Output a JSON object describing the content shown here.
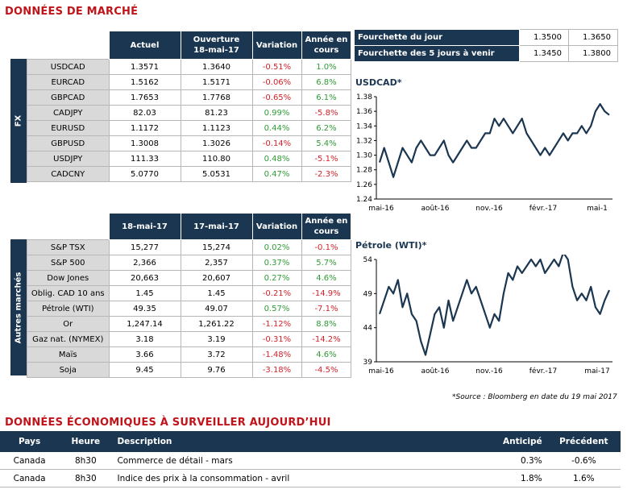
{
  "title_market": "DONNÉES DE MARCHÉ",
  "fx": {
    "side_label": "FX",
    "headers": [
      "Actuel",
      "Ouverture\n18-mai-17",
      "Variation",
      "Année en\ncours"
    ],
    "rows": [
      {
        "label": "USDCAD",
        "actuel": "1.3571",
        "ouverture": "1.3640",
        "variation": "-0.51%",
        "annee": "1.0%",
        "var_dir": "neg",
        "annee_dir": "pos"
      },
      {
        "label": "EURCAD",
        "actuel": "1.5162",
        "ouverture": "1.5171",
        "variation": "-0.06%",
        "annee": "6.8%",
        "var_dir": "neg",
        "annee_dir": "pos"
      },
      {
        "label": "GBPCAD",
        "actuel": "1.7653",
        "ouverture": "1.7768",
        "variation": "-0.65%",
        "annee": "6.1%",
        "var_dir": "neg",
        "annee_dir": "pos"
      },
      {
        "label": "CADJPY",
        "actuel": "82.03",
        "ouverture": "81.23",
        "variation": "0.99%",
        "annee": "-5.8%",
        "var_dir": "pos",
        "annee_dir": "neg"
      },
      {
        "label": "EURUSD",
        "actuel": "1.1172",
        "ouverture": "1.1123",
        "variation": "0.44%",
        "annee": "6.2%",
        "var_dir": "pos",
        "annee_dir": "pos"
      },
      {
        "label": "GBPUSD",
        "actuel": "1.3008",
        "ouverture": "1.3026",
        "variation": "-0.14%",
        "annee": "5.4%",
        "var_dir": "neg",
        "annee_dir": "pos"
      },
      {
        "label": "USDJPY",
        "actuel": "111.33",
        "ouverture": "110.80",
        "variation": "0.48%",
        "annee": "-5.1%",
        "var_dir": "pos",
        "annee_dir": "neg"
      },
      {
        "label": "CADCNY",
        "actuel": "5.0770",
        "ouverture": "5.0531",
        "variation": "0.47%",
        "annee": "-2.3%",
        "var_dir": "pos",
        "annee_dir": "neg"
      }
    ]
  },
  "other": {
    "side_label": "Autres marchés",
    "headers": [
      "18-mai-17",
      "17-mai-17",
      "Variation",
      "Année en\ncours"
    ],
    "rows": [
      {
        "label": "S&P TSX",
        "actuel": "15,277",
        "ouverture": "15,274",
        "variation": "0.02%",
        "annee": "-0.1%",
        "var_dir": "pos",
        "annee_dir": "neg"
      },
      {
        "label": "S&P 500",
        "actuel": "2,366",
        "ouverture": "2,357",
        "variation": "0.37%",
        "annee": "5.7%",
        "var_dir": "pos",
        "annee_dir": "pos"
      },
      {
        "label": "Dow Jones",
        "actuel": "20,663",
        "ouverture": "20,607",
        "variation": "0.27%",
        "annee": "4.6%",
        "var_dir": "pos",
        "annee_dir": "pos"
      },
      {
        "label": "Oblig. CAD 10 ans",
        "actuel": "1.45",
        "ouverture": "1.45",
        "variation": "-0.21%",
        "annee": "-14.9%",
        "var_dir": "neg",
        "annee_dir": "neg"
      },
      {
        "label": "Pétrole (WTI)",
        "actuel": "49.35",
        "ouverture": "49.07",
        "variation": "0.57%",
        "annee": "-7.1%",
        "var_dir": "pos",
        "annee_dir": "neg"
      },
      {
        "label": "Or",
        "actuel": "1,247.14",
        "ouverture": "1,261.22",
        "variation": "-1.12%",
        "annee": "8.8%",
        "var_dir": "neg",
        "annee_dir": "pos"
      },
      {
        "label": "Gaz nat. (NYMEX)",
        "actuel": "3.18",
        "ouverture": "3.19",
        "variation": "-0.31%",
        "annee": "-14.2%",
        "var_dir": "neg",
        "annee_dir": "neg"
      },
      {
        "label": "Maïs",
        "actuel": "3.66",
        "ouverture": "3.72",
        "variation": "-1.48%",
        "annee": "4.6%",
        "var_dir": "neg",
        "annee_dir": "pos"
      },
      {
        "label": "Soja",
        "actuel": "9.45",
        "ouverture": "9.76",
        "variation": "-3.18%",
        "annee": "-4.5%",
        "var_dir": "neg",
        "annee_dir": "neg"
      }
    ]
  },
  "ranges": [
    {
      "label": "Fourchette du jour",
      "low": "1.3500",
      "high": "1.3650"
    },
    {
      "label": "Fourchette des 5 jours à venir",
      "low": "1.3450",
      "high": "1.3800"
    }
  ],
  "source": "*Source : Bloomberg en date du  19 mai 2017",
  "title_econ": "DONNÉES ÉCONOMIQUES À SURVEILLER AUJOURD’HUI",
  "econ": {
    "headers": {
      "pays": "Pays",
      "heure": "Heure",
      "description": "Description",
      "anticipe": "Anticipé",
      "precedent": "Précédent"
    },
    "rows": [
      {
        "pays": "Canada",
        "heure": "8h30",
        "description": "Commerce de détail - mars",
        "anticipe": "0.3%",
        "precedent": "-0.6%"
      },
      {
        "pays": "Canada",
        "heure": "8h30",
        "description": "Indice des prix à la consommation - avril",
        "anticipe": "1.8%",
        "precedent": "1.6%"
      }
    ]
  },
  "colors": {
    "navy": "#1b3650",
    "red": "#c0141a",
    "pos": "#2e9b34",
    "neg": "#d2232a"
  },
  "chart_data": [
    {
      "type": "line",
      "title": "USDCAD*",
      "x_ticks": [
        "mai-16",
        "août-16",
        "nov.-16",
        "févr.-17",
        "mai-1"
      ],
      "y_ticks": [
        1.24,
        1.26,
        1.28,
        1.3,
        1.32,
        1.34,
        1.36,
        1.38
      ],
      "ylim": [
        1.24,
        1.38
      ],
      "series": [
        {
          "values": [
            1.29,
            1.31,
            1.29,
            1.27,
            1.29,
            1.31,
            1.3,
            1.29,
            1.31,
            1.32,
            1.31,
            1.3,
            1.3,
            1.31,
            1.32,
            1.3,
            1.29,
            1.3,
            1.31,
            1.32,
            1.31,
            1.31,
            1.32,
            1.33,
            1.33,
            1.35,
            1.34,
            1.35,
            1.34,
            1.33,
            1.34,
            1.35,
            1.33,
            1.32,
            1.31,
            1.3,
            1.31,
            1.3,
            1.31,
            1.32,
            1.33,
            1.32,
            1.33,
            1.33,
            1.34,
            1.33,
            1.34,
            1.36,
            1.37,
            1.36,
            1.355
          ]
        }
      ]
    },
    {
      "type": "line",
      "title": "Pétrole (WTI)*",
      "x_ticks": [
        "mai-16",
        "août-16",
        "nov.-16",
        "févr.-17",
        "mai-17"
      ],
      "y_ticks": [
        39,
        44,
        49,
        54
      ],
      "ylim": [
        39,
        54
      ],
      "series": [
        {
          "values": [
            46,
            48,
            50,
            49,
            51,
            47,
            49,
            46,
            45,
            42,
            40,
            43,
            46,
            47,
            44,
            48,
            45,
            47,
            49,
            51,
            49,
            50,
            48,
            46,
            44,
            46,
            45,
            49,
            52,
            51,
            53,
            52,
            53,
            54,
            53,
            54,
            52,
            53,
            54,
            53,
            55,
            54,
            50,
            48,
            49,
            48,
            50,
            47,
            46,
            48,
            49.5
          ]
        }
      ]
    }
  ]
}
